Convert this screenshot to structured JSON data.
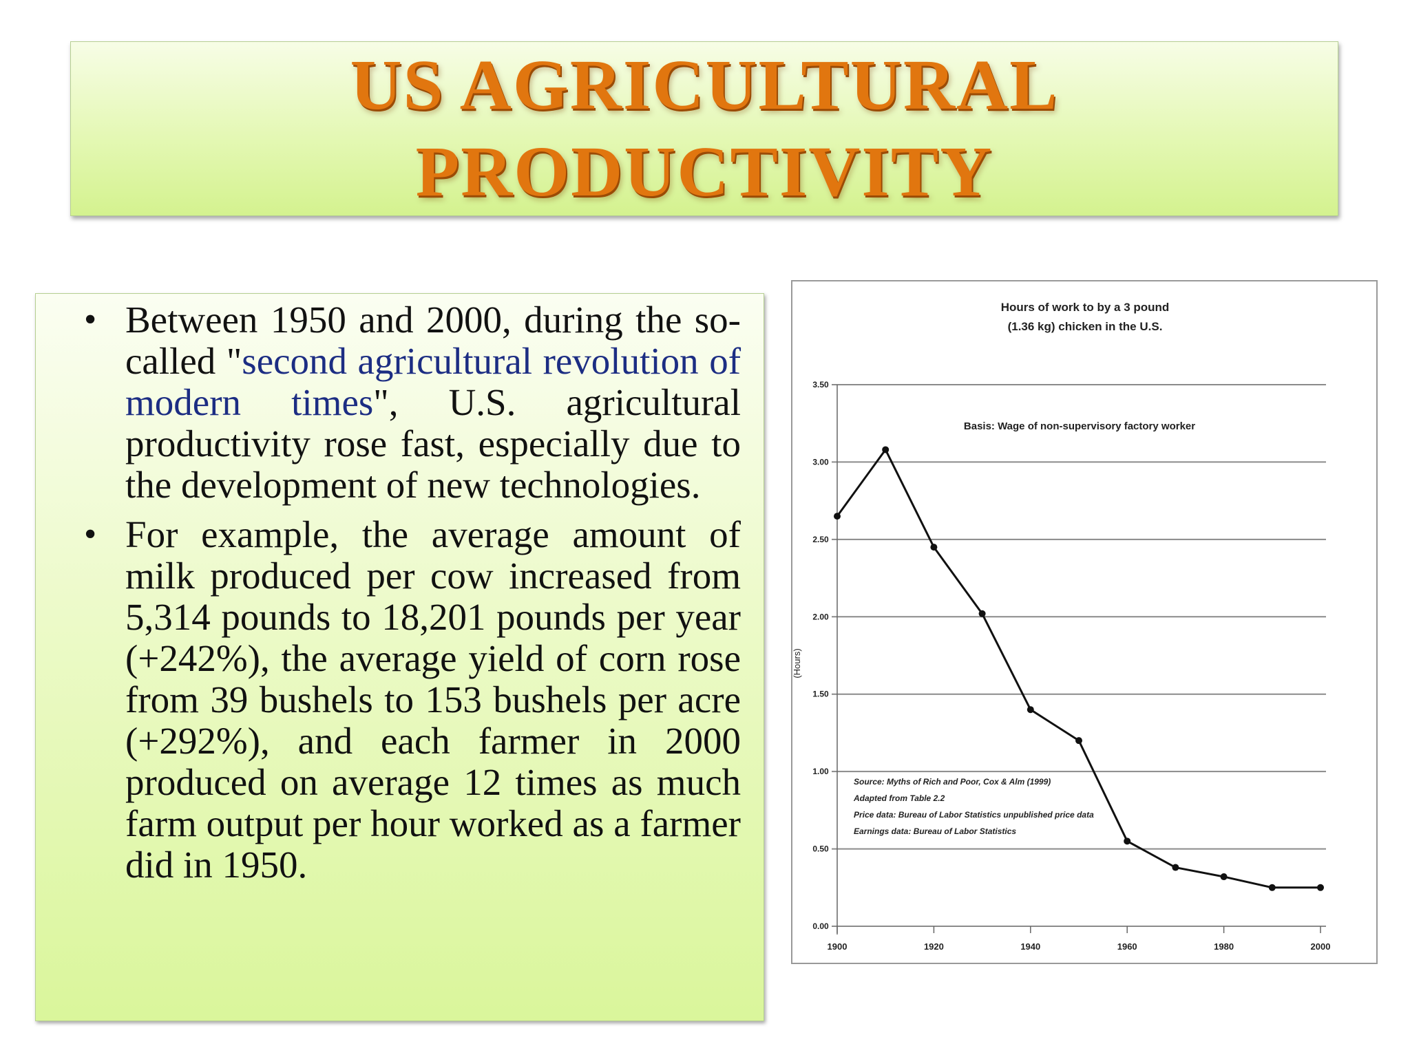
{
  "slide": {
    "title_line1": "US AGRICULTURAL",
    "title_line2": "PRODUCTIVITY"
  },
  "bullets": [
    {
      "before": "Between 1950 and 2000, during the so-called \"",
      "highlight": "second agricultural revolution of modern times",
      "after": "\", U.S. agricultural productivity rose fast, especially due to the development of new technologies."
    },
    {
      "text": "For example, the average amount of milk produced per cow increased from 5,314 pounds to 18,201 pounds per year (+242%), the average yield of corn rose from 39 bushels to 153 bushels per acre (+292%), and each farmer in 2000 produced on average 12 times as much farm output per hour worked as a farmer did in 1950."
    }
  ],
  "colors": {
    "title": "#e1760f",
    "highlight": "#1c2d83",
    "box_green": "#daf69b"
  },
  "chart_data": {
    "type": "line",
    "title_lines": [
      "Hours of work to by a 3 pound",
      "(1.36 kg) chicken in the U.S."
    ],
    "basis": "Basis: Wage of non-supervisory factory worker",
    "ylabel": "(Hours)",
    "xlabel": "",
    "x": [
      1900,
      1910,
      1920,
      1930,
      1940,
      1950,
      1960,
      1970,
      1980,
      1990,
      2000
    ],
    "series": [
      {
        "values": [
          2.65,
          3.08,
          2.45,
          2.02,
          1.4,
          1.2,
          0.55,
          0.38,
          0.32,
          0.25,
          0.25
        ]
      }
    ],
    "xticks": [
      "1900",
      "1920",
      "1940",
      "1960",
      "1980",
      "2000"
    ],
    "yticks": [
      "0.00",
      "0.50",
      "1.00",
      "1.50",
      "2.00",
      "2.50",
      "3.00",
      "3.50"
    ],
    "ylim": [
      0,
      3.5
    ],
    "xlim": [
      1900,
      2000
    ],
    "grid": true,
    "notes": [
      "Source: Myths of Rich and Poor, Cox & Alm (1999)",
      "Adapted from Table 2.2",
      "Price data: Bureau of Labor Statistics unpublished price data",
      "Earnings data: Bureau of Labor Statistics"
    ]
  }
}
